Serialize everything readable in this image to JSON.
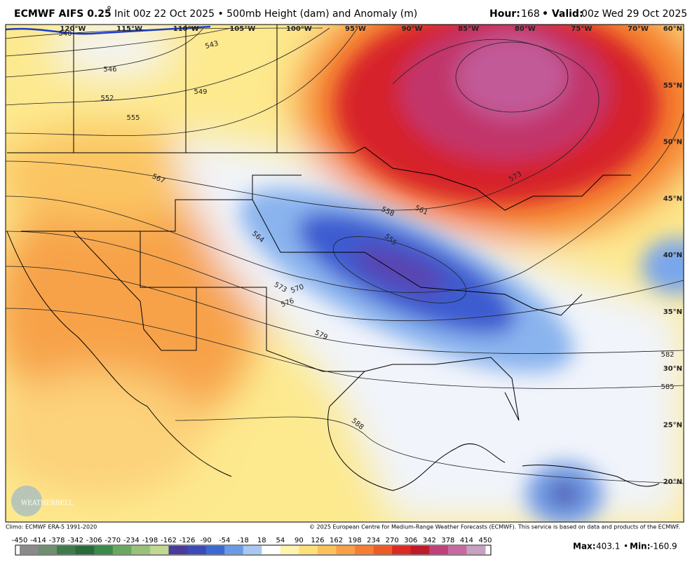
{
  "header": {
    "title": "ECMWF AIFS 0.25",
    "title_degree": "°",
    "subtitle": "Init 00z 22 Oct 2025 • 500mb Height (dam) and Anomaly (m)",
    "hour_label": "Hour:",
    "hour": "168",
    "valid_label": "• Valid:",
    "valid": "00z Wed 29 Oct 2025"
  },
  "map": {
    "longitude_labels": [
      "120°W",
      "115°W",
      "110°W",
      "105°W",
      "100°W",
      "95°W",
      "90°W",
      "85°W",
      "80°W",
      "75°W",
      "70°W"
    ],
    "latitude_labels": [
      "60°N",
      "55°N",
      "50°N",
      "45°N",
      "40°N",
      "35°N",
      "30°N",
      "25°N",
      "20°N"
    ],
    "contour_labels": [
      "540",
      "543",
      "546",
      "549",
      "552",
      "555",
      "567",
      "558",
      "561",
      "555",
      "564",
      "573",
      "573",
      "570",
      "576",
      "579",
      "582",
      "585",
      "588"
    ],
    "logo": "WEATHERBELL"
  },
  "footer": {
    "climo": "Climo: ECMWF ERA-5 1991-2020",
    "copyright": "© 2025 European Centre for Medium-Range Weather Forecasts (ECMWF). This service is based on data and products of the ECMWF.",
    "max_label": "Max:",
    "max": "403.1",
    "separator": "•",
    "min_label": "Min:",
    "min": "-160.9"
  },
  "colorbar": {
    "labels": [
      -450,
      -414,
      -378,
      -342,
      -306,
      -270,
      -234,
      -198,
      -162,
      -126,
      -90,
      -54,
      -18,
      18,
      54,
      90,
      126,
      162,
      198,
      234,
      270,
      306,
      342,
      378,
      414,
      450
    ],
    "colors": [
      "#8a8a8a",
      "#6f8f6f",
      "#3f7a4a",
      "#2a6a3a",
      "#3a8a4a",
      "#6aa860",
      "#98c27a",
      "#c0d890",
      "#4a3a9a",
      "#3a4ab8",
      "#3a6ad0",
      "#6a9ae6",
      "#a8c8f2",
      "#ffffff",
      "#fff3b0",
      "#fde07a",
      "#fbc25a",
      "#f8a048",
      "#f57e32",
      "#ee5a26",
      "#dc2a22",
      "#c01a2a",
      "#c0407a",
      "#c86aa0",
      "#c8a0c0"
    ]
  }
}
